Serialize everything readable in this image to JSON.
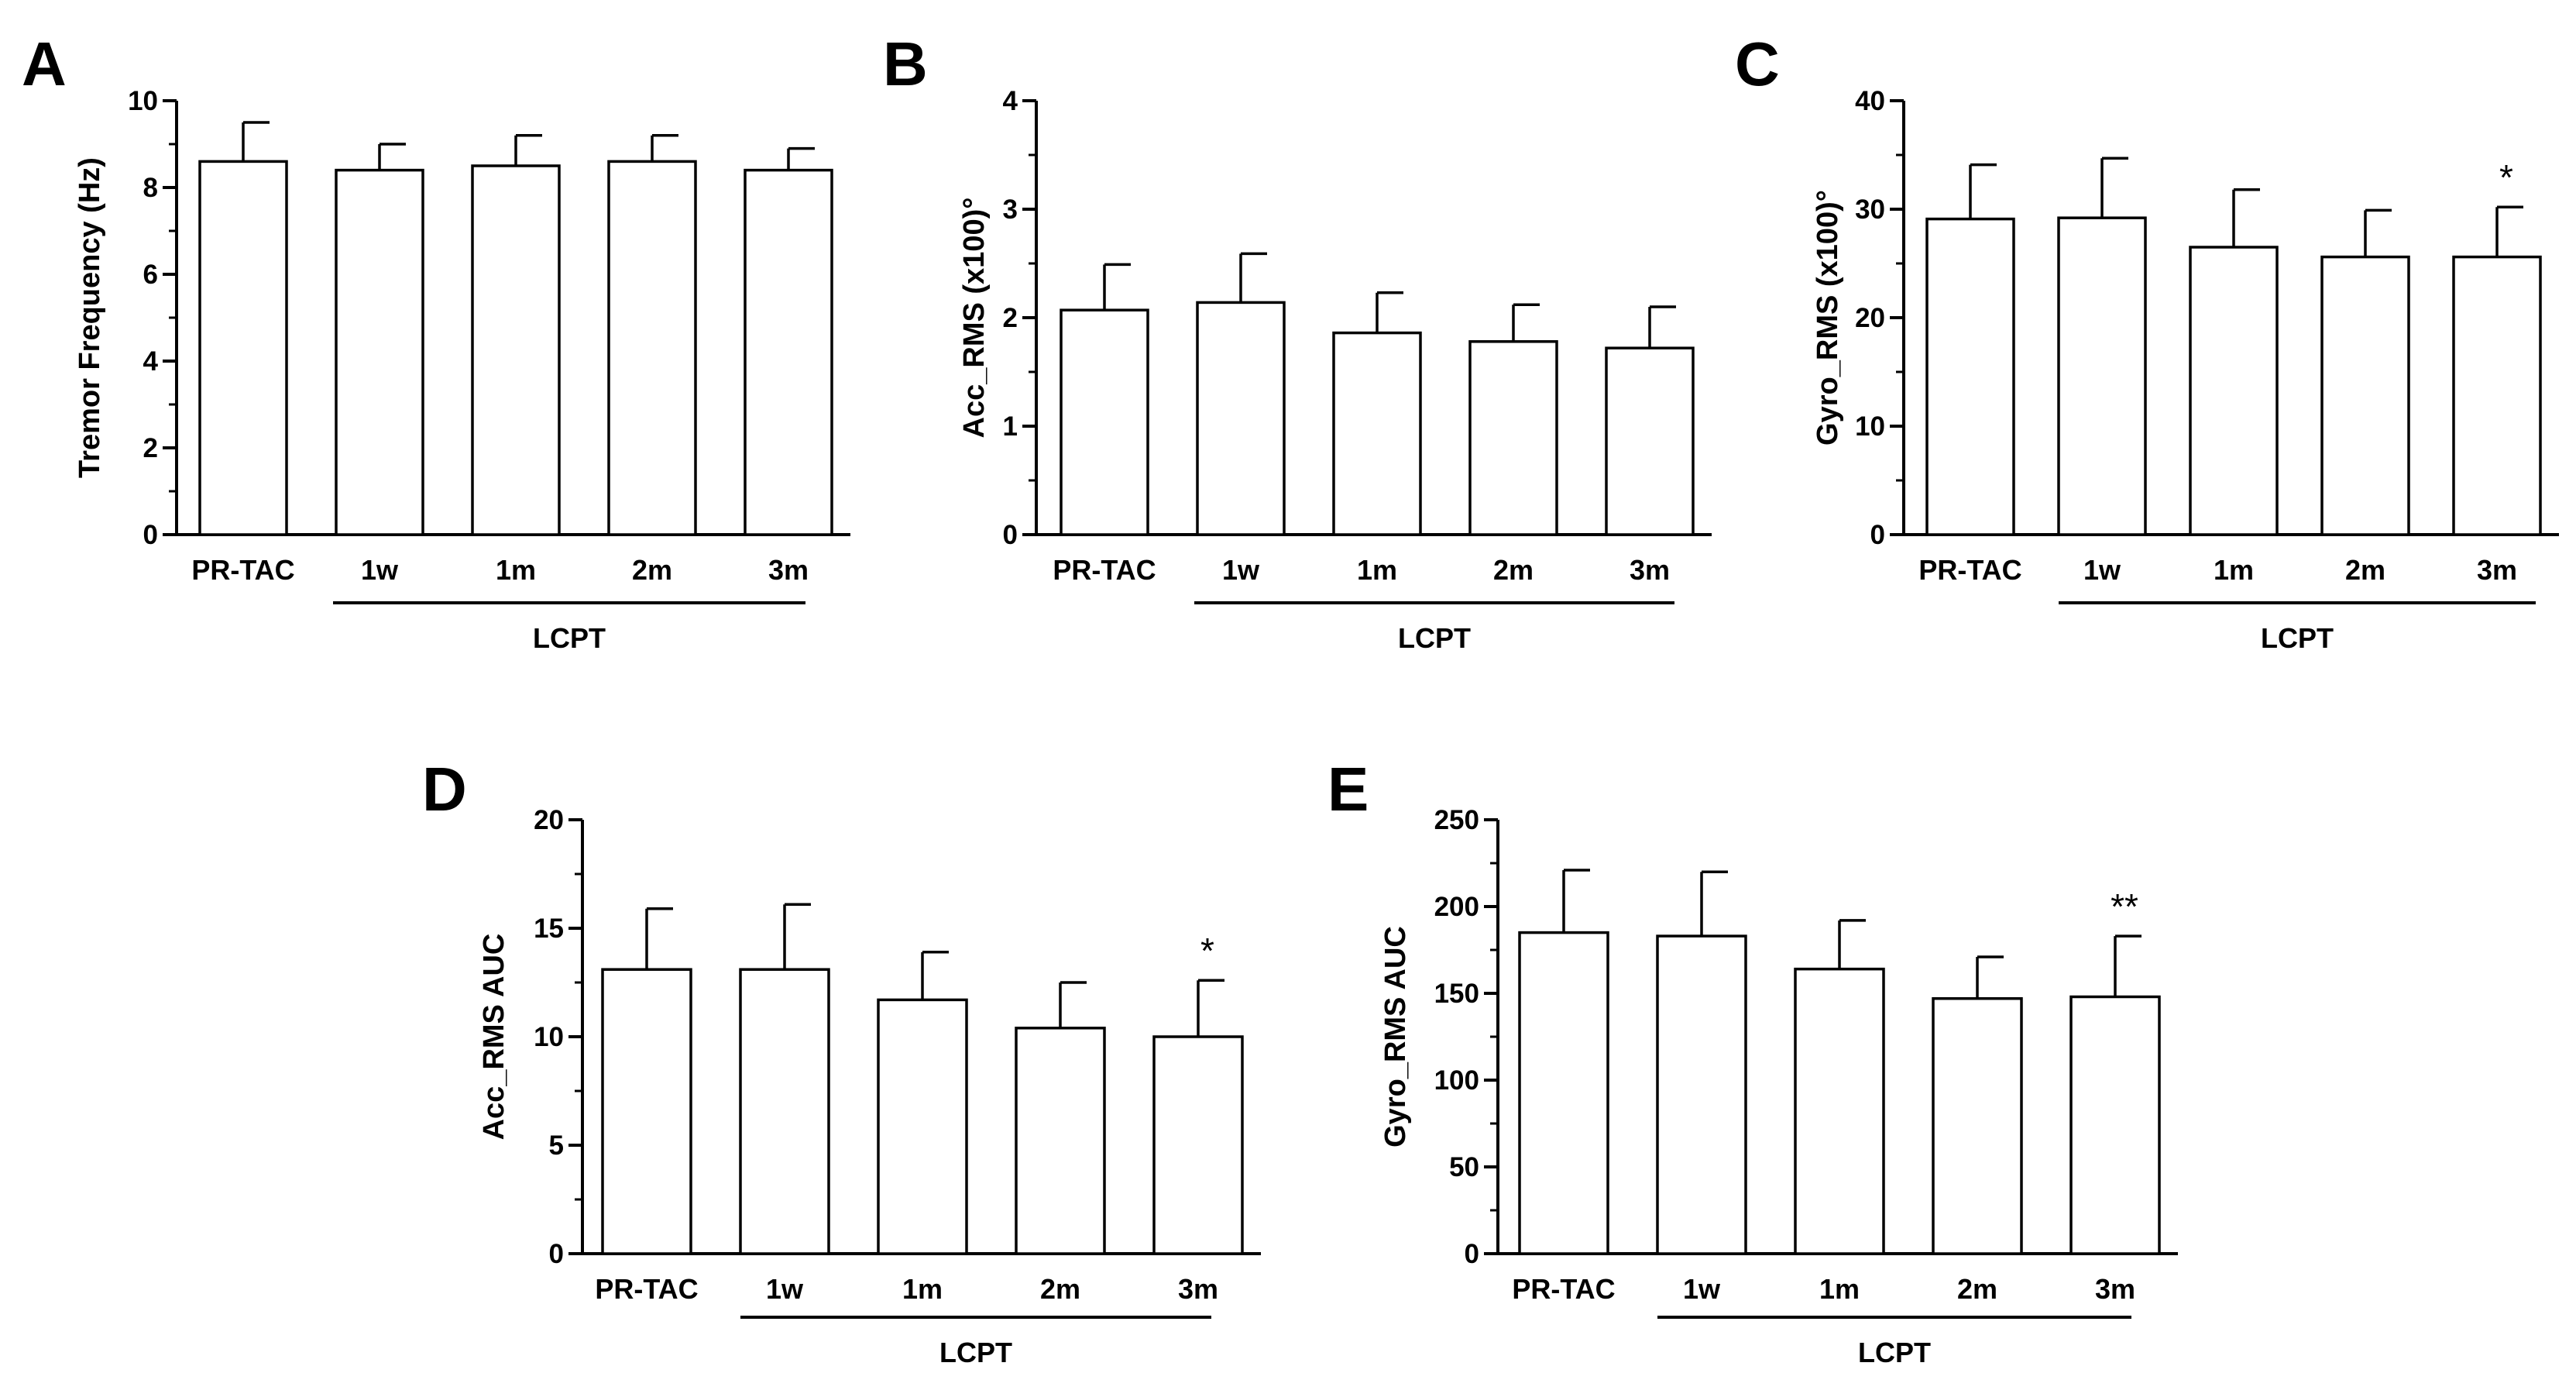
{
  "chart_data": [
    {
      "type": "bar",
      "panel": "A",
      "ylabel": "Tremor Frequency (Hz)",
      "ylim": [
        0,
        10
      ],
      "yticks": [
        "0",
        "2",
        "4",
        "6",
        "8",
        "10"
      ],
      "ytick_values": [
        0,
        2,
        4,
        6,
        8,
        10
      ],
      "minor_ticks": true,
      "categories": [
        "PR-TAC",
        "1w",
        "1m",
        "2m",
        "3m"
      ],
      "values": [
        8.6,
        8.4,
        8.5,
        8.6,
        8.4
      ],
      "error": [
        0.9,
        0.6,
        0.7,
        0.6,
        0.5
      ],
      "annotations": [
        "",
        "",
        "",
        "",
        ""
      ],
      "group_label": "LCPT"
    },
    {
      "type": "bar",
      "panel": "B",
      "ylabel": "Acc_RMS (x100)°",
      "ylim": [
        0,
        4
      ],
      "yticks": [
        "0",
        "1",
        "2",
        "3",
        "4"
      ],
      "ytick_values": [
        0,
        1,
        2,
        3,
        4
      ],
      "minor_ticks": true,
      "categories": [
        "PR-TAC",
        "1w",
        "1m",
        "2m",
        "3m"
      ],
      "values": [
        2.07,
        2.14,
        1.86,
        1.78,
        1.72
      ],
      "error": [
        0.42,
        0.45,
        0.37,
        0.34,
        0.38
      ],
      "annotations": [
        "",
        "",
        "",
        "",
        ""
      ],
      "group_label": "LCPT"
    },
    {
      "type": "bar",
      "panel": "C",
      "ylabel": "Gyro_RMS (x100)°",
      "ylim": [
        0,
        40
      ],
      "yticks": [
        "0",
        "10",
        "20",
        "30",
        "40"
      ],
      "ytick_values": [
        0,
        10,
        20,
        30,
        40
      ],
      "minor_ticks": true,
      "categories": [
        "PR-TAC",
        "1w",
        "1m",
        "2m",
        "3m"
      ],
      "values": [
        29.1,
        29.2,
        26.5,
        25.6,
        25.6
      ],
      "error": [
        5.0,
        5.5,
        5.3,
        4.3,
        4.6
      ],
      "annotations": [
        "",
        "",
        "",
        "",
        "*"
      ],
      "group_label": "LCPT"
    },
    {
      "type": "bar",
      "panel": "D",
      "ylabel": "Acc_RMS AUC",
      "ylim": [
        0,
        20
      ],
      "yticks": [
        "0",
        "5",
        "10",
        "15",
        "20"
      ],
      "ytick_values": [
        0,
        5,
        10,
        15,
        20
      ],
      "minor_ticks": true,
      "categories": [
        "PR-TAC",
        "1w",
        "1m",
        "2m",
        "3m"
      ],
      "values": [
        13.1,
        13.1,
        11.7,
        10.4,
        10.0
      ],
      "error": [
        2.8,
        3.0,
        2.2,
        2.1,
        2.6
      ],
      "annotations": [
        "",
        "",
        "",
        "",
        "*"
      ],
      "group_label": "LCPT"
    },
    {
      "type": "bar",
      "panel": "E",
      "ylabel": "Gyro_RMS AUC",
      "ylim": [
        0,
        250
      ],
      "yticks": [
        "0",
        "50",
        "100",
        "150",
        "200",
        "250"
      ],
      "ytick_values": [
        0,
        50,
        100,
        150,
        200,
        250
      ],
      "minor_ticks": true,
      "categories": [
        "PR-TAC",
        "1w",
        "1m",
        "2m",
        "3m"
      ],
      "values": [
        185,
        183,
        164,
        147,
        148
      ],
      "error": [
        36,
        37,
        28,
        24,
        35
      ],
      "annotations": [
        "",
        "",
        "",
        "",
        "**"
      ],
      "group_label": "LCPT"
    }
  ]
}
